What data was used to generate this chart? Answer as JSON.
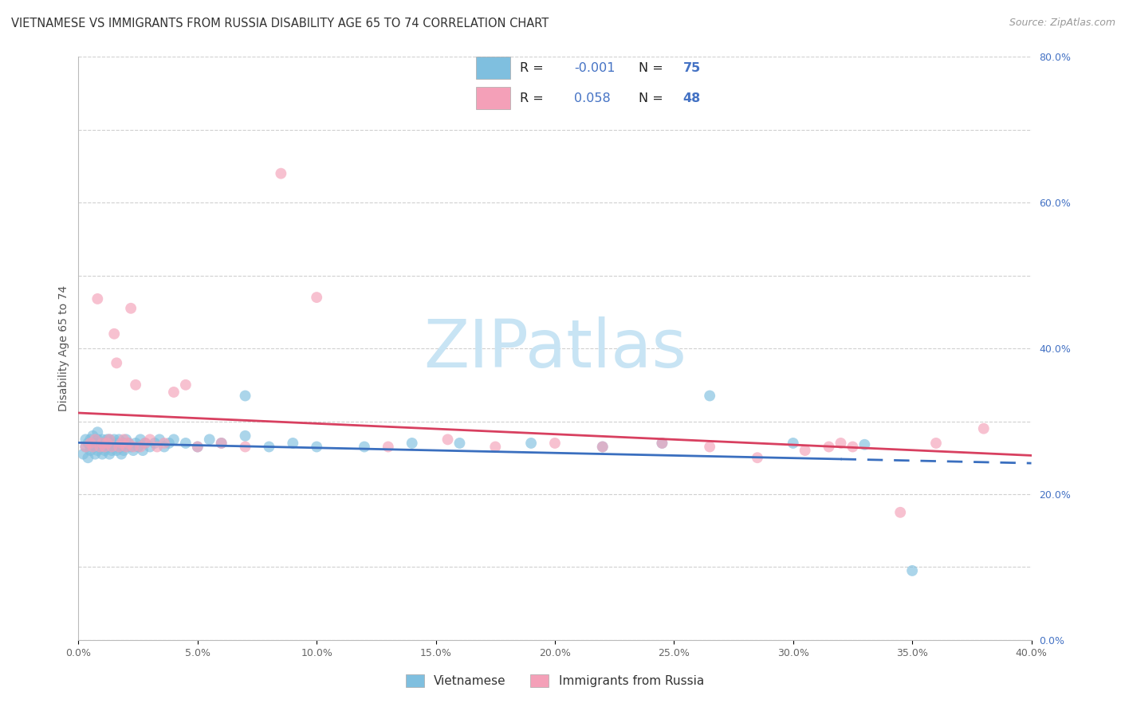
{
  "title": "VIETNAMESE VS IMMIGRANTS FROM RUSSIA DISABILITY AGE 65 TO 74 CORRELATION CHART",
  "source": "Source: ZipAtlas.com",
  "ylabel": "Disability Age 65 to 74",
  "xlim": [
    0.0,
    0.4
  ],
  "ylim": [
    0.0,
    0.8
  ],
  "xtick_vals": [
    0.0,
    0.05,
    0.1,
    0.15,
    0.2,
    0.25,
    0.3,
    0.35,
    0.4
  ],
  "right_yticks": [
    0.0,
    0.2,
    0.4,
    0.6,
    0.8
  ],
  "grid_yticks": [
    0.0,
    0.1,
    0.2,
    0.3,
    0.4,
    0.5,
    0.6,
    0.7,
    0.8
  ],
  "legend_R1": "-0.001",
  "legend_N1": "75",
  "legend_R2": "0.058",
  "legend_N2": "48",
  "color_vietnamese": "#7fbfdf",
  "color_russia": "#f4a0b8",
  "color_reg_vietnamese": "#3a6fbf",
  "color_reg_russia": "#d84060",
  "watermark_color": "#c8e4f4",
  "scatter_alpha": 0.65,
  "marker_size": 100,
  "background_color": "#ffffff",
  "grid_color": "#d0d0d0",
  "title_fontsize": 10.5,
  "axis_label_fontsize": 10,
  "tick_fontsize": 9,
  "right_tick_color": "#4472c4",
  "viet_reg_slope": -0.001,
  "viet_reg_intercept": 0.268,
  "russ_reg_slope": 0.058,
  "russ_reg_intercept": 0.255
}
